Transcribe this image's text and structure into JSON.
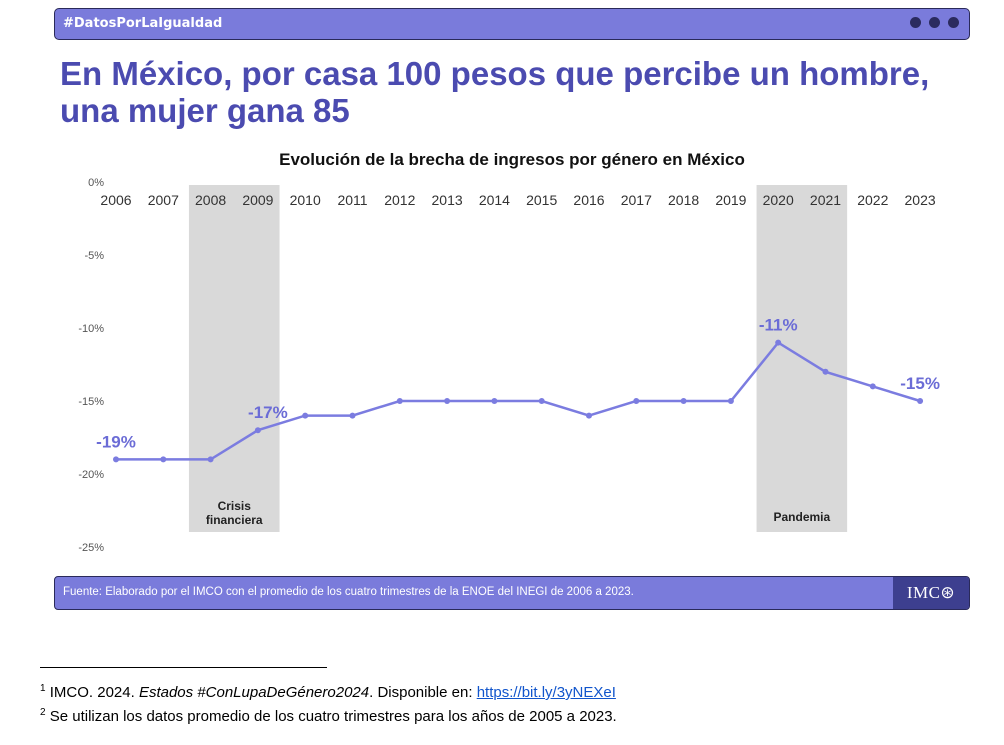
{
  "header": {
    "tag": "#DatosPorLaIgualdad"
  },
  "headline": "En México, por casa 100 pesos que percibe un hombre, una mujer gana 85",
  "chart_data": {
    "type": "line",
    "title": "Evolución de la brecha de ingresos por género en México",
    "x": [
      2006,
      2007,
      2008,
      2009,
      2010,
      2011,
      2012,
      2013,
      2014,
      2015,
      2016,
      2017,
      2018,
      2019,
      2020,
      2021,
      2022,
      2023
    ],
    "categories": [
      "2006",
      "2007",
      "2008",
      "2009",
      "2010",
      "2011",
      "2012",
      "2013",
      "2014",
      "2015",
      "2016",
      "2017",
      "2018",
      "2019",
      "2020",
      "2021",
      "2022",
      "2023"
    ],
    "series": [
      {
        "values": [
          -19,
          -19,
          -19,
          -17,
          -16,
          -16,
          -15,
          -15,
          -15,
          -15,
          -16,
          -15,
          -15,
          -15,
          -11,
          -13,
          -14,
          -15
        ]
      }
    ],
    "ylim": [
      -25,
      0
    ],
    "yticks": [
      0,
      -5,
      -10,
      -15,
      -20,
      -25
    ],
    "ytick_labels": [
      "0%",
      "-5%",
      "-10%",
      "-15%",
      "-20%",
      "-25%"
    ],
    "xaxis_position": "top",
    "grid": false,
    "data_labels": [
      {
        "x": 2006,
        "text": "-19%"
      },
      {
        "x": 2009,
        "text": "-17%"
      },
      {
        "x": 2020,
        "text": "-11%"
      },
      {
        "x": 2023,
        "text": "-15%"
      }
    ],
    "shaded_periods": [
      {
        "from": 2008,
        "to": 2009,
        "label_lines": [
          "Crisis",
          "financiera"
        ]
      },
      {
        "from": 2020,
        "to": 2021,
        "label_lines": [
          "Pandemia"
        ]
      }
    ],
    "colors": {
      "line": "#7B7CE0",
      "label": "#6B6CD6",
      "shade": "#D9D9D9"
    }
  },
  "footer": {
    "source": "Fuente: Elaborado por el IMCO con el promedio de los cuatro trimestres de la ENOE del INEGI de 2006 a 2023.",
    "logo_text": "IMC⊛"
  },
  "footnotes": {
    "fn1_mark": "1",
    "fn1_pre": " IMCO. 2024. ",
    "fn1_italic": "Estados #ConLupaDeGénero2024",
    "fn1_post": ". Disponible en: ",
    "fn1_link": "https://bit.ly/3yNEXeI",
    "fn2_mark": "2",
    "fn2_text": " Se utilizan los datos promedio de los cuatro trimestres para los años de 2005 a 2023."
  },
  "colors": {
    "accent": "#7A7BDB",
    "headline": "#4B4BB0",
    "dots": "#2B2B5E",
    "logo_bg": "#3D3F8F"
  }
}
